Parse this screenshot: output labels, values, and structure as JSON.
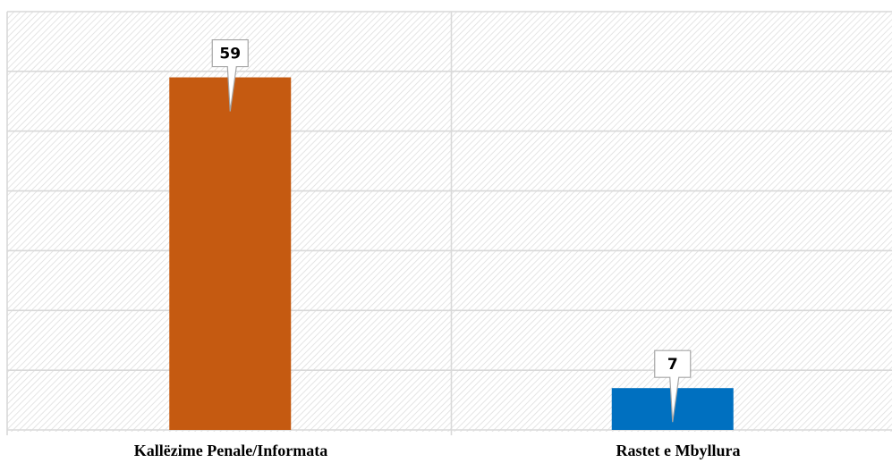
{
  "chart_data": {
    "type": "bar",
    "title": "",
    "xlabel": "",
    "ylabel": "",
    "categories": [
      "Kallëzime Penale/Informata",
      "Rastet e Mbyllura"
    ],
    "values": [
      59,
      7
    ],
    "data_labels": [
      "59",
      "7"
    ],
    "bar_colors": [
      "#c55a11",
      "#0070c0"
    ],
    "ylim": [
      0,
      70
    ],
    "y_tick_step": 10,
    "grid": true,
    "y_axis_labels_shown": false,
    "legend": "none",
    "background_pattern": "diagonal-hatch"
  }
}
